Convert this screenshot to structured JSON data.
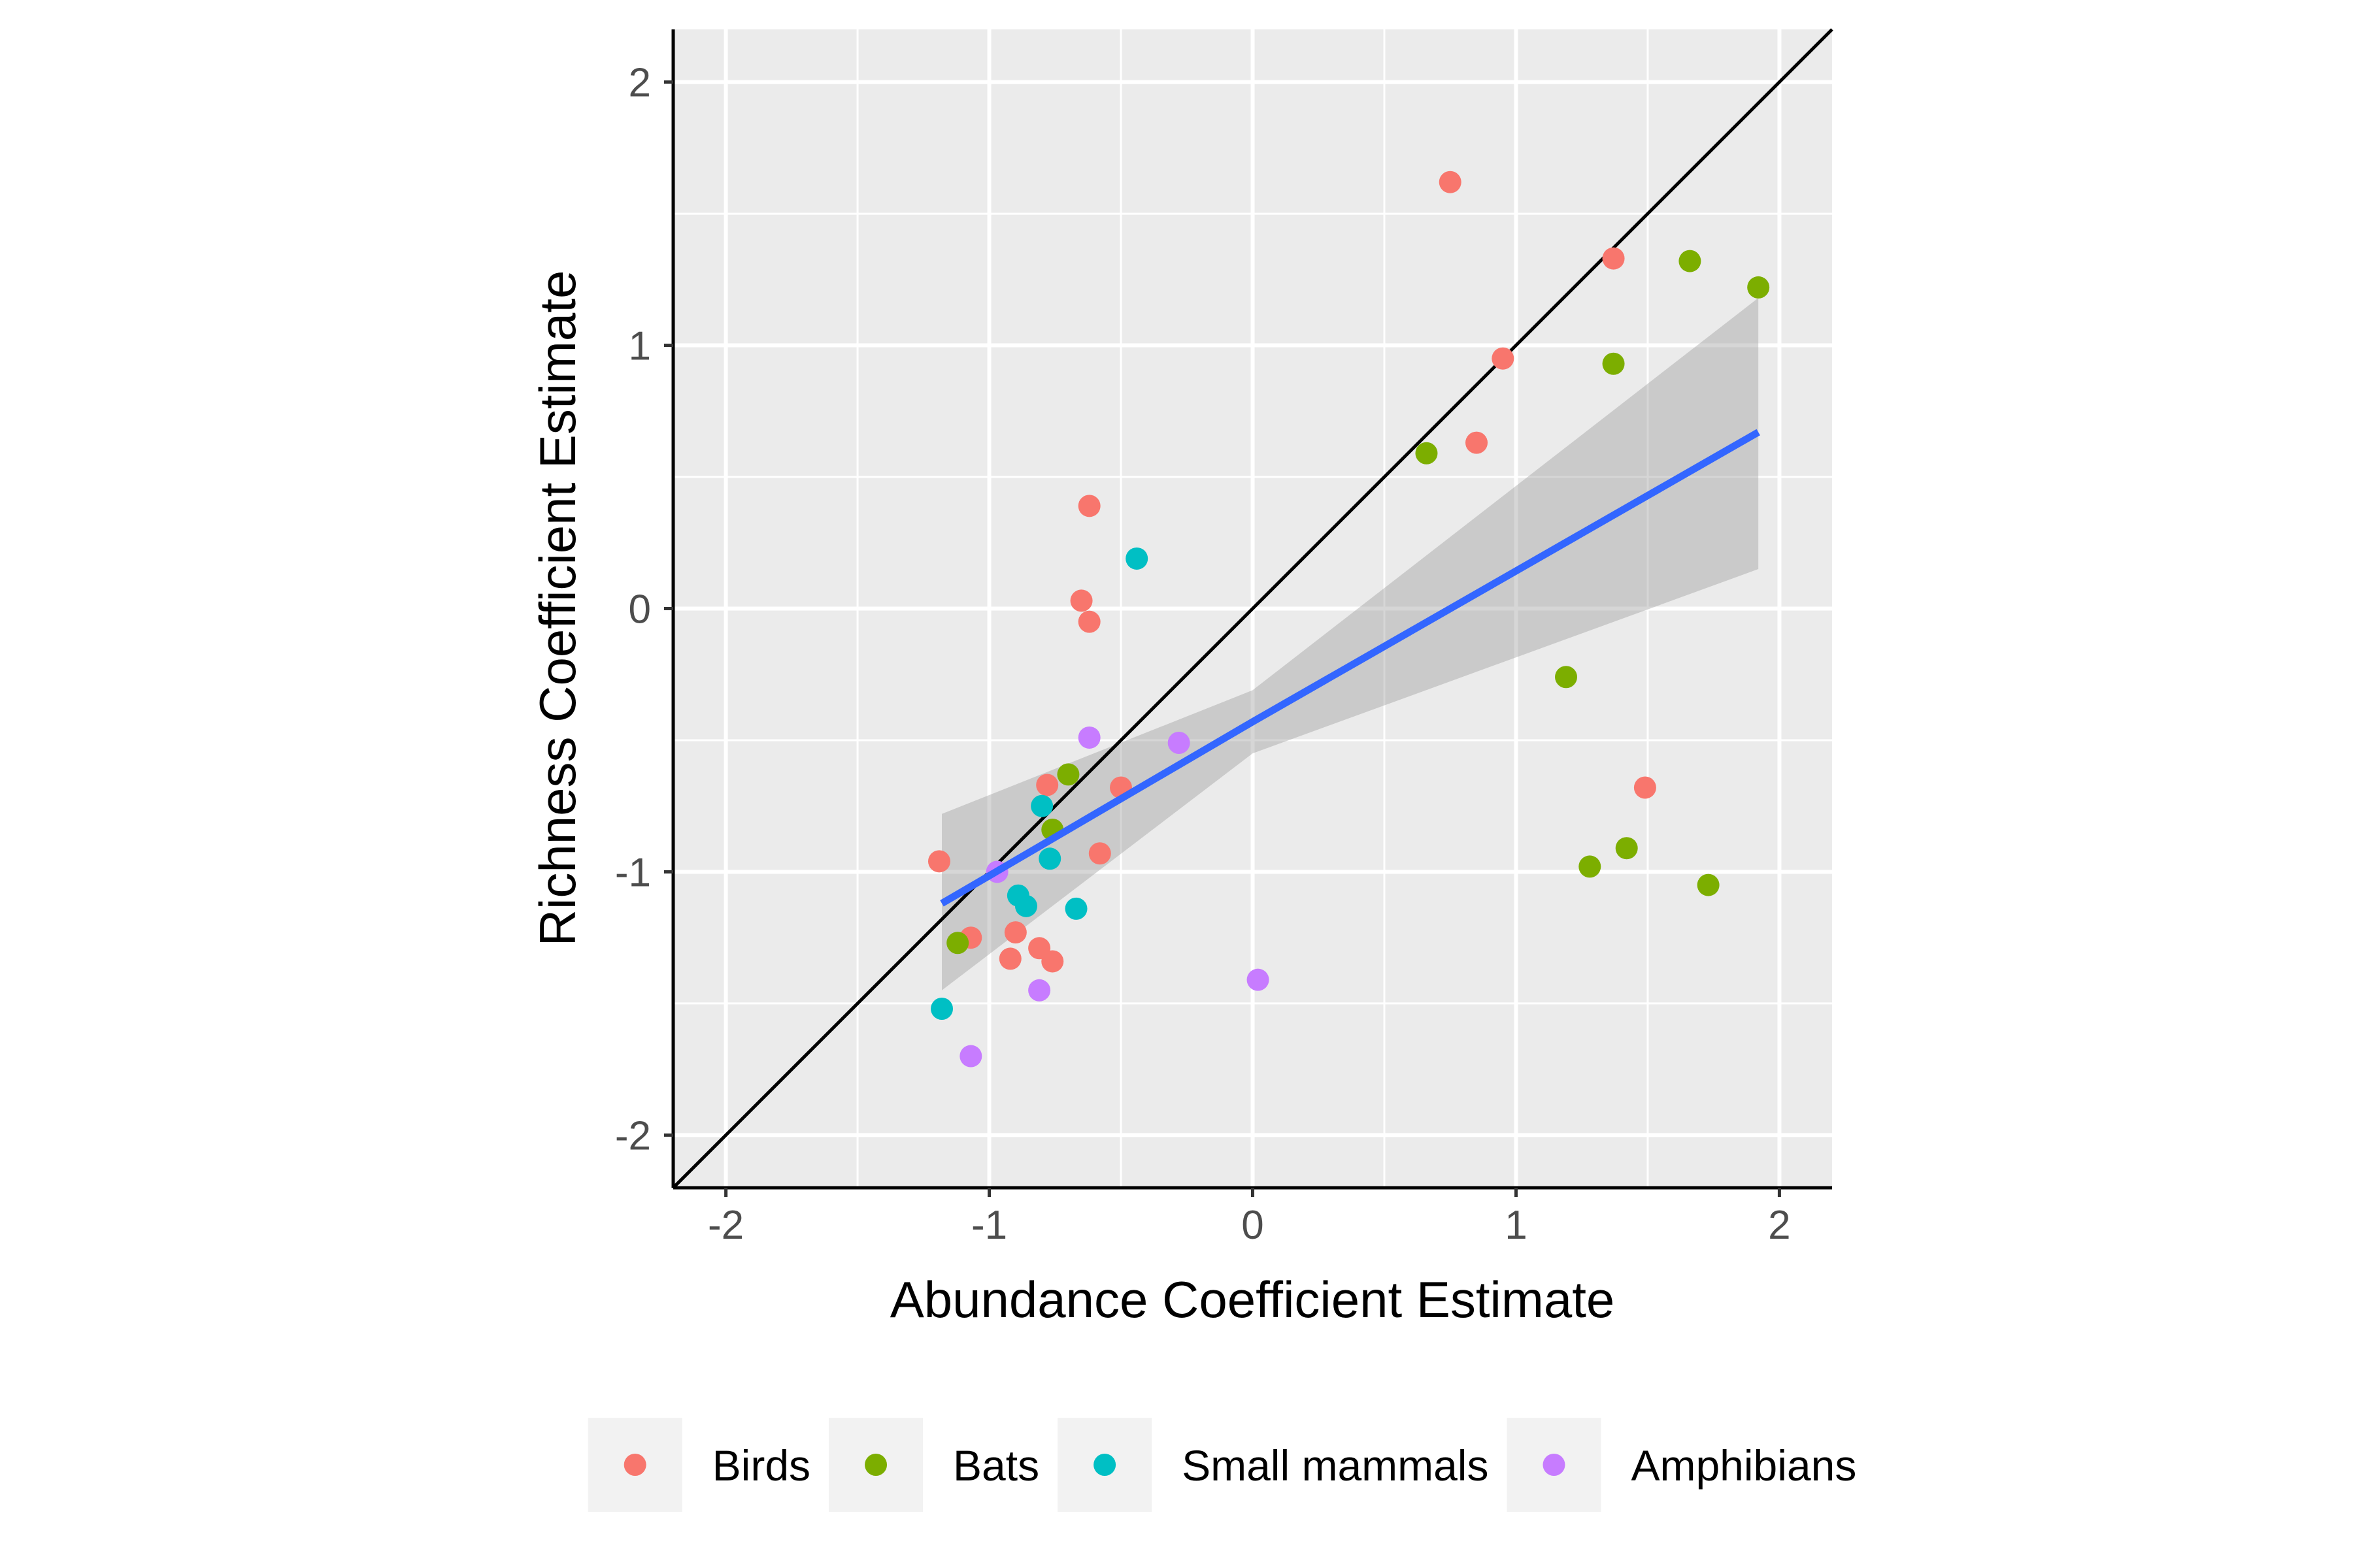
{
  "chart_data": {
    "type": "scatter",
    "xlabel": "Abundance Coefficient Estimate",
    "ylabel": "Richness Coefficient Estimate",
    "xlim": [
      -2.2,
      2.2
    ],
    "ylim": [
      -2.2,
      2.2
    ],
    "x_ticks": [
      "-2",
      "-1",
      "0",
      "1",
      "2"
    ],
    "y_ticks": [
      "-2",
      "-1",
      "0",
      "1",
      "2"
    ],
    "grid": true,
    "legend_position": "bottom",
    "reference_line": {
      "type": "identity",
      "slope": 1,
      "intercept": 0,
      "color": "#000000"
    },
    "fit": {
      "method": "linear",
      "color": "#3366ff",
      "ribbon_color": "#999999",
      "x": [
        -1.18,
        0.0,
        1.92
      ],
      "y": [
        -1.12,
        -0.43,
        0.67
      ],
      "lower": [
        -1.45,
        -0.55,
        0.15
      ],
      "upper": [
        -0.78,
        -0.31,
        1.18
      ]
    },
    "series": [
      {
        "name": "Birds",
        "color": "#f8766d",
        "points": [
          [
            0.75,
            1.62
          ],
          [
            1.37,
            1.33
          ],
          [
            0.95,
            0.95
          ],
          [
            0.85,
            0.63
          ],
          [
            -0.62,
            0.39
          ],
          [
            -0.65,
            0.03
          ],
          [
            -0.62,
            -0.05
          ],
          [
            1.49,
            -0.68
          ],
          [
            -0.5,
            -0.68
          ],
          [
            -0.78,
            -0.67
          ],
          [
            -0.58,
            -0.93
          ],
          [
            -1.19,
            -0.96
          ],
          [
            -1.07,
            -1.25
          ],
          [
            -0.9,
            -1.23
          ],
          [
            -0.81,
            -1.29
          ],
          [
            -0.92,
            -1.33
          ],
          [
            -0.76,
            -1.34
          ]
        ]
      },
      {
        "name": "Bats",
        "color": "#7cae00",
        "points": [
          [
            1.66,
            1.32
          ],
          [
            1.92,
            1.22
          ],
          [
            1.37,
            0.93
          ],
          [
            0.66,
            0.59
          ],
          [
            1.19,
            -0.26
          ],
          [
            -0.7,
            -0.63
          ],
          [
            -0.76,
            -0.84
          ],
          [
            1.42,
            -0.91
          ],
          [
            1.28,
            -0.98
          ],
          [
            1.73,
            -1.05
          ],
          [
            -1.12,
            -1.27
          ]
        ]
      },
      {
        "name": "Small mammals",
        "color": "#00bfc4",
        "points": [
          [
            -0.44,
            0.19
          ],
          [
            -0.8,
            -0.75
          ],
          [
            -0.77,
            -0.95
          ],
          [
            -0.89,
            -1.09
          ],
          [
            -0.86,
            -1.13
          ],
          [
            -0.67,
            -1.14
          ],
          [
            -1.18,
            -1.52
          ]
        ]
      },
      {
        "name": "Amphibians",
        "color": "#c77cff",
        "points": [
          [
            -0.62,
            -0.49
          ],
          [
            -0.28,
            -0.51
          ],
          [
            -0.97,
            -1.0
          ],
          [
            0.02,
            -1.41
          ],
          [
            -0.81,
            -1.45
          ],
          [
            -1.07,
            -1.7
          ]
        ]
      }
    ]
  }
}
